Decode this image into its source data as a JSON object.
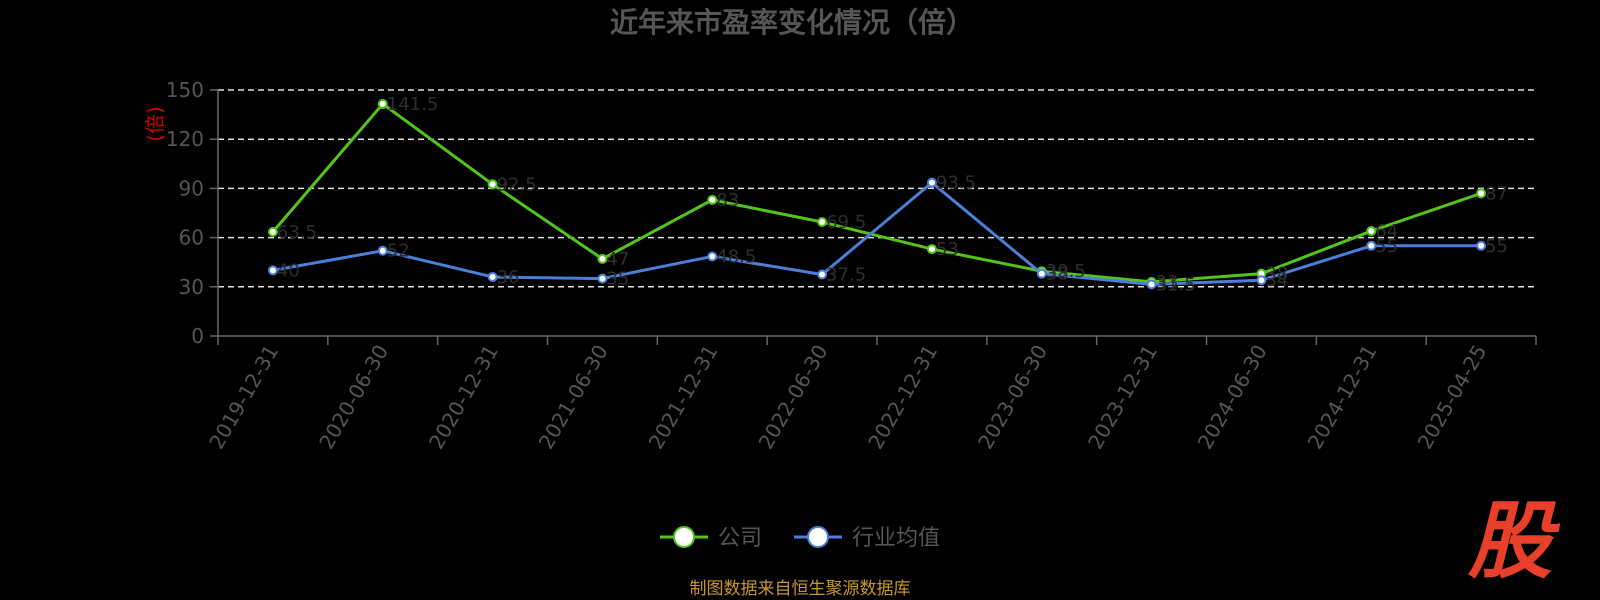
{
  "chart_data": {
    "type": "line",
    "title": "近年来市盈率变化情况（倍）",
    "ylabel": "(倍)",
    "ylim": [
      0,
      150
    ],
    "yticks": [
      0,
      30,
      60,
      90,
      120,
      150
    ],
    "grid": true,
    "legend_position": "bottom",
    "categories": [
      "2019-12-31",
      "2020-06-30",
      "2020-12-31",
      "2021-06-30",
      "2021-12-31",
      "2022-06-30",
      "2022-12-31",
      "2023-06-30",
      "2023-12-31",
      "2024-06-30",
      "2024-12-31",
      "2025-04-25"
    ],
    "series": [
      {
        "name": "公司",
        "color": "#52c41a",
        "values": [
          63.5,
          141.5,
          92.5,
          47.0,
          83.0,
          69.5,
          53.0,
          39.5,
          33.0,
          38.0,
          64.0,
          87.0
        ]
      },
      {
        "name": "行业均值",
        "color": "#4a7fd9",
        "values": [
          40.0,
          52.0,
          36.0,
          35.0,
          48.5,
          37.5,
          93.5,
          38.0,
          31.5,
          34.0,
          55.0,
          55.0
        ]
      }
    ]
  },
  "footer": {
    "source": "制图数据来自恒生聚源数据库"
  },
  "logo": {
    "text": "股"
  }
}
